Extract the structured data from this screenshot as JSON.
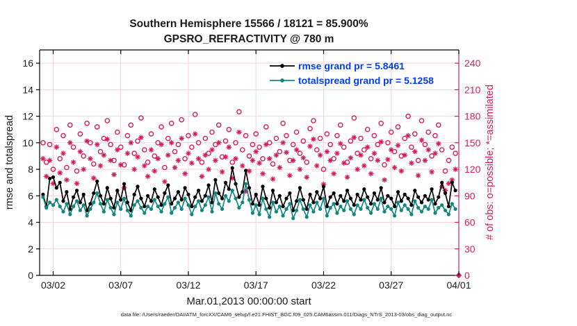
{
  "header": {
    "title_line1": "Southern Hemisphere 15566 / 18121 = 85.900%",
    "title_line2": "GPSRO_REFRACTIVITY @ 780 m"
  },
  "footer": {
    "data_file": "data file: /Users/raeder/DAI/ATM_forcXX/CAM6_setup/f.e21.FHIST_BGC.f09_025.CAM6assim.011/Diags_NTrS_2013-03/obs_diag_output.nc"
  },
  "chart_data": {
    "type": "line",
    "title": "Southern Hemisphere 15566 / 18121 = 85.900%",
    "subtitle": "GPSRO_REFRACTIVITY @ 780 m",
    "xlabel": "Mar.01,2013 00:00:00 start",
    "ylabel_left": "rmse and totalspread",
    "ylabel_right": "# of obs: o=possible; *=assimilated",
    "x_tick_labels": [
      "03/02",
      "03/07",
      "03/12",
      "03/17",
      "03/22",
      "03/27",
      "04/01"
    ],
    "x_tick_days": [
      1,
      6,
      11,
      16,
      21,
      26,
      31
    ],
    "xlim_days": [
      0,
      31
    ],
    "ylim_left": [
      0,
      17
    ],
    "yticks_left": [
      0,
      2,
      4,
      6,
      8,
      10,
      12,
      14,
      16
    ],
    "ylim_right": [
      0,
      255
    ],
    "yticks_right": [
      0,
      30,
      60,
      90,
      120,
      150,
      180,
      210,
      240
    ],
    "grid": true,
    "legend_position": "top-center-inside",
    "legend": [
      {
        "label": "rmse grand pr = 5.8461",
        "color": "#000000"
      },
      {
        "label": "totalspread grand pr = 5.1258",
        "color": "#128780"
      }
    ],
    "colors": {
      "rmse": "#000000",
      "totalspread": "#128780",
      "obs": "#d61a5b",
      "grid": "#f6d0db",
      "legend_text": "#003cff"
    },
    "t_start_day": 0.25,
    "t_step_day": 0.25,
    "series": {
      "rmse": [
        6.1,
        5.2,
        7.3,
        7.4,
        6.6,
        7.0,
        5.6,
        6.3,
        5.0,
        5.9,
        6.4,
        5.5,
        6.1,
        4.9,
        5.4,
        6.2,
        7.1,
        6.0,
        5.4,
        6.6,
        5.8,
        5.1,
        6.4,
        5.7,
        6.9,
        5.5,
        4.9,
        6.1,
        6.7,
        5.8,
        5.2,
        6.0,
        5.6,
        6.5,
        5.9,
        5.3,
        6.2,
        6.8,
        5.4,
        5.8,
        6.3,
        5.7,
        6.6,
        6.1,
        5.2,
        5.9,
        6.4,
        5.6,
        6.0,
        6.8,
        5.5,
        7.2,
        6.2,
        5.8,
        7.0,
        6.5,
        8.1,
        6.9,
        5.9,
        6.3,
        7.9,
        6.6,
        5.4,
        6.1,
        5.3,
        6.7,
        5.8,
        5.1,
        6.4,
        5.5,
        6.0,
        5.2,
        5.8,
        6.2,
        4.9,
        5.6,
        6.6,
        5.7,
        5.0,
        6.1,
        5.5,
        6.3,
        5.8,
        6.7,
        5.2,
        5.9,
        6.2,
        5.4,
        6.0,
        5.6,
        6.4,
        5.8,
        5.3,
        6.1,
        5.7,
        6.5,
        5.9,
        5.4,
        6.2,
        5.7,
        6.6,
        5.5,
        6.0,
        5.8,
        5.2,
        6.3,
        5.6,
        6.1,
        5.8,
        5.3,
        6.4,
        5.9,
        5.5,
        6.0,
        5.7,
        6.5,
        5.4,
        5.9,
        7.0,
        6.2,
        5.2,
        7.0,
        6.4
      ],
      "totalspread": [
        5.9,
        5.1,
        5.5,
        5.3,
        5.7,
        5.2,
        4.8,
        5.4,
        4.6,
        5.2,
        5.6,
        4.9,
        5.3,
        4.5,
        5.0,
        5.5,
        6.2,
        5.4,
        4.8,
        5.7,
        5.1,
        4.6,
        5.5,
        5.0,
        5.8,
        4.9,
        4.5,
        5.3,
        5.6,
        5.1,
        4.7,
        5.2,
        5.0,
        5.7,
        5.2,
        4.8,
        5.4,
        5.9,
        4.7,
        5.1,
        5.5,
        5.0,
        5.8,
        5.3,
        4.6,
        5.2,
        5.6,
        4.9,
        5.3,
        5.9,
        4.8,
        6.2,
        5.4,
        5.0,
        6.0,
        5.6,
        6.4,
        5.8,
        5.1,
        5.5,
        6.9,
        5.7,
        4.7,
        5.3,
        4.6,
        5.8,
        5.0,
        4.4,
        5.5,
        4.8,
        5.2,
        4.5,
        5.0,
        5.4,
        4.3,
        4.9,
        5.7,
        5.0,
        4.4,
        5.3,
        4.8,
        5.5,
        5.0,
        5.8,
        4.5,
        5.1,
        5.4,
        4.7,
        5.2,
        4.9,
        5.6,
        5.0,
        4.6,
        5.3,
        5.0,
        5.7,
        5.1,
        4.7,
        5.4,
        5.0,
        5.8,
        4.8,
        5.2,
        5.0,
        4.5,
        5.5,
        4.9,
        5.3,
        5.0,
        4.6,
        5.6,
        5.1,
        4.8,
        5.2,
        5.0,
        5.7,
        4.7,
        5.1,
        5.3,
        4.9,
        4.6,
        5.4,
        5.0
      ],
      "possible": [
        150,
        128,
        148,
        120,
        165,
        132,
        158,
        122,
        170,
        145,
        118,
        160,
        135,
        172,
        150,
        126,
        168,
        140,
        155,
        175,
        148,
        130,
        162,
        145,
        125,
        158,
        170,
        138,
        152,
        178,
        142,
        128,
        160,
        135,
        150,
        168,
        122,
        155,
        172,
        140,
        148,
        176,
        132,
        158,
        145,
        182,
        150,
        128,
        155,
        138,
        162,
        148,
        170,
        134,
        152,
        165,
        128,
        150,
        185,
        142,
        158,
        135,
        148,
        160,
        145,
        132,
        168,
        150,
        126,
        155,
        140,
        172,
        158,
        130,
        148,
        162,
        138,
        152,
        128,
        166,
        175,
        142,
        155,
        120,
        160,
        148,
        132,
        158,
        170,
        145,
        128,
        152,
        178,
        138,
        155,
        142,
        165,
        132,
        158,
        148,
        172,
        125,
        150,
        162,
        140,
        168,
        135,
        155,
        180,
        145,
        160,
        130,
        175,
        148,
        162,
        135,
        158,
        170,
        142,
        118,
        130,
        145,
        138
      ],
      "assimilated": [
        132,
        112,
        130,
        104,
        145,
        116,
        138,
        108,
        150,
        128,
        104,
        140,
        120,
        152,
        132,
        110,
        148,
        124,
        136,
        154,
        130,
        114,
        142,
        125,
        99,
        138,
        150,
        120,
        134,
        156,
        124,
        112,
        142,
        118,
        132,
        148,
        106,
        136,
        150,
        122,
        130,
        155,
        115,
        138,
        127,
        160,
        132,
        112,
        136,
        120,
        142,
        130,
        150,
        117,
        134,
        145,
        110,
        132,
        162,
        124,
        95,
        118,
        130,
        140,
        127,
        115,
        148,
        132,
        109,
        136,
        122,
        150,
        139,
        113,
        130,
        142,
        120,
        133,
        111,
        146,
        154,
        124,
        136,
        103,
        140,
        130,
        115,
        138,
        149,
        127,
        111,
        133,
        156,
        120,
        136,
        124,
        145,
        115,
        138,
        130,
        151,
        108,
        131,
        142,
        122,
        147,
        118,
        136,
        158,
        127,
        140,
        113,
        153,
        130,
        142,
        117,
        138,
        149,
        100,
        96,
        104,
        108,
        120
      ]
    },
    "final_point": {
      "day": 31,
      "possible": 0,
      "assimilated": 0
    }
  }
}
